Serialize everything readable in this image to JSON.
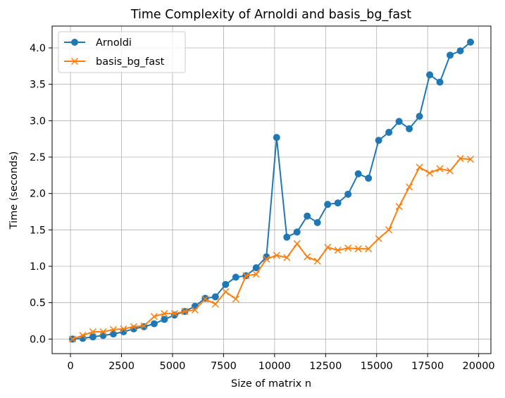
{
  "chart_data": {
    "type": "line",
    "title": "Time Complexity of Arnoldi and basis_bg_fast",
    "xlabel": "Size of matrix n",
    "ylabel": "Time (seconds)",
    "xlim": [
      -900,
      20600
    ],
    "ylim": [
      -0.2,
      4.3
    ],
    "xticks": [
      0,
      2500,
      5000,
      7500,
      10000,
      12500,
      15000,
      17500,
      20000
    ],
    "xtick_labels": [
      "0",
      "2500",
      "5000",
      "7500",
      "10000",
      "12500",
      "15000",
      "17500",
      "20000"
    ],
    "yticks": [
      0.0,
      0.5,
      1.0,
      1.5,
      2.0,
      2.5,
      3.0,
      3.5,
      4.0
    ],
    "ytick_labels": [
      "0.0",
      "0.5",
      "1.0",
      "1.5",
      "2.0",
      "2.5",
      "3.0",
      "3.5",
      "4.0"
    ],
    "grid": true,
    "legend_position": "top-left",
    "x": [
      100,
      600,
      1100,
      1600,
      2100,
      2600,
      3100,
      3600,
      4100,
      4600,
      5100,
      5600,
      6100,
      6600,
      7100,
      7600,
      8100,
      8600,
      9100,
      9600,
      10100,
      10600,
      11100,
      11600,
      12100,
      12600,
      13100,
      13600,
      14100,
      14600,
      15100,
      15600,
      16100,
      16600,
      17100,
      17600,
      18100,
      18600,
      19100,
      19600
    ],
    "series": [
      {
        "name": "Arnoldi",
        "color": "#1f77b4",
        "marker": "circle",
        "values": [
          0.0,
          0.01,
          0.03,
          0.05,
          0.07,
          0.1,
          0.14,
          0.17,
          0.21,
          0.27,
          0.33,
          0.38,
          0.45,
          0.56,
          0.58,
          0.75,
          0.85,
          0.87,
          0.98,
          1.13,
          2.77,
          1.4,
          1.47,
          1.69,
          1.6,
          1.85,
          1.87,
          1.99,
          2.27,
          2.21,
          2.73,
          2.84,
          2.99,
          2.89,
          3.06,
          3.63,
          3.53,
          3.9,
          3.96,
          4.08
        ]
      },
      {
        "name": "basis_bg_fast",
        "color": "#ff7f0e",
        "marker": "x",
        "values": [
          0.0,
          0.05,
          0.1,
          0.1,
          0.13,
          0.14,
          0.17,
          0.18,
          0.31,
          0.35,
          0.35,
          0.38,
          0.4,
          0.55,
          0.48,
          0.65,
          0.55,
          0.87,
          0.89,
          1.1,
          1.15,
          1.12,
          1.31,
          1.13,
          1.07,
          1.26,
          1.22,
          1.25,
          1.24,
          1.24,
          1.38,
          1.5,
          1.82,
          2.09,
          2.36,
          2.28,
          2.34,
          2.31,
          2.48,
          2.47
        ]
      }
    ]
  }
}
